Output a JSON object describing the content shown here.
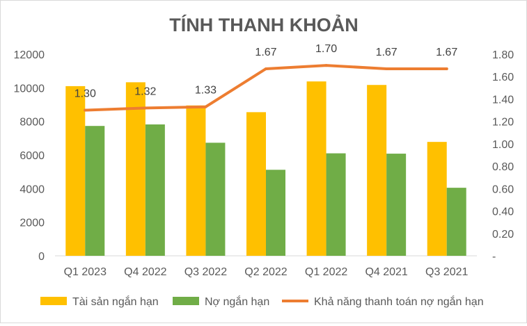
{
  "chart_data": {
    "type": "bar",
    "title": "TÍNH THANH KHOẢN",
    "categories": [
      "Q1 2023",
      "Q4 2022",
      "Q3 2022",
      "Q2 2022",
      "Q1 2022",
      "Q4 2021",
      "Q3 2021"
    ],
    "series": [
      {
        "name": "Tài sản ngắn hạn",
        "type": "bar",
        "axis": "left",
        "color": "#FFC000",
        "values": [
          10100,
          10330,
          8950,
          8550,
          10380,
          10170,
          6780
        ]
      },
      {
        "name": "Nợ ngắn hạn",
        "type": "bar",
        "axis": "left",
        "color": "#70AD47",
        "values": [
          7730,
          7820,
          6730,
          5120,
          6100,
          6080,
          4050
        ]
      },
      {
        "name": "Khả năng thanh toán nợ ngắn hạn",
        "type": "line",
        "axis": "right",
        "color": "#ED7D31",
        "values": [
          1.3,
          1.32,
          1.33,
          1.67,
          1.7,
          1.67,
          1.67
        ],
        "labels": [
          "1.30",
          "1.32",
          "1.33",
          "1.67",
          "1.70",
          "1.67",
          "1.67"
        ]
      }
    ],
    "y_left": {
      "min": 0,
      "max": 12000,
      "ticks": [
        "0",
        "2000",
        "4000",
        "6000",
        "8000",
        "10000",
        "12000"
      ]
    },
    "y_right": {
      "min": 0,
      "max": 1.8,
      "ticks": [
        "-",
        "0.20",
        "0.40",
        "0.60",
        "0.80",
        "1.00",
        "1.20",
        "1.40",
        "1.60",
        "1.80"
      ]
    },
    "grid": false,
    "legend_position": "bottom"
  }
}
